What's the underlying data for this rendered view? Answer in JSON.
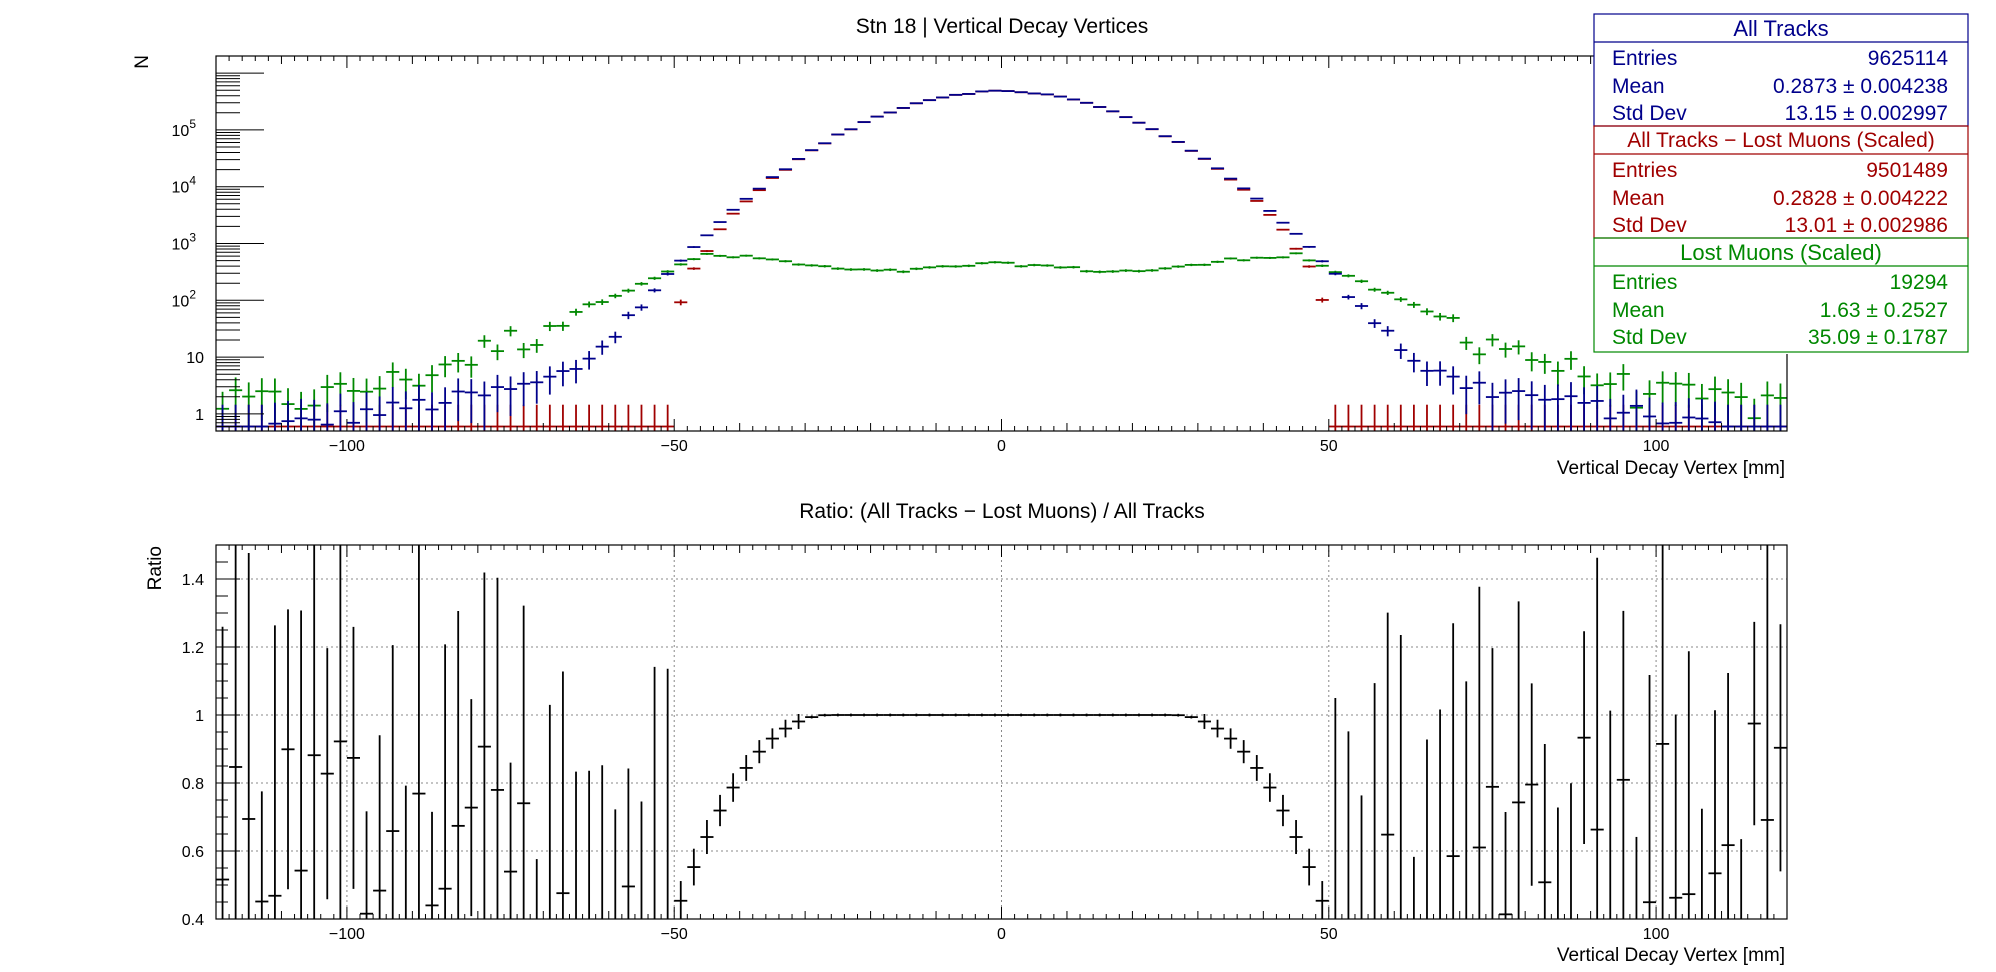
{
  "chart_data": [
    {
      "id": "top",
      "type": "histogram",
      "title": "Stn 18 | Vertical Decay Vertices",
      "xlabel": "Vertical Decay Vertex [mm]",
      "ylabel": "N",
      "xlim": [
        -120,
        120
      ],
      "ylim": [
        0.5,
        2000000
      ],
      "yscale": "log",
      "xticks": [
        -100,
        -50,
        0,
        50,
        100
      ],
      "xtick_labels": [
        "−100",
        "−50",
        "0",
        "50",
        "100"
      ],
      "yticks": [
        {
          "value": 1,
          "base": "1",
          "exp": ""
        },
        {
          "value": 10,
          "base": "10",
          "exp": ""
        },
        {
          "value": 100,
          "base": "10",
          "exp": "2"
        },
        {
          "value": 1000,
          "base": "10",
          "exp": "3"
        },
        {
          "value": 10000,
          "base": "10",
          "exp": "4"
        },
        {
          "value": 100000,
          "base": "10",
          "exp": "5"
        }
      ],
      "grid": false,
      "bin_width": 2,
      "bin_edges": [
        -120,
        120
      ],
      "series": [
        {
          "name": "All Tracks",
          "color": "#00008b",
          "model": "all_tracks"
        },
        {
          "name": "All Tracks  − Lost Muons (Scaled)",
          "color": "#a00000",
          "model": "all_minus_lost"
        },
        {
          "name": "Lost Muons (Scaled)",
          "color": "#008800",
          "model": "lost_muons"
        }
      ],
      "stats": [
        {
          "header": "All Tracks",
          "color": "#00008b",
          "rows": [
            {
              "label": "Entries",
              "value": "9625114"
            },
            {
              "label": "Mean",
              "value": "0.2873 ± 0.004238"
            },
            {
              "label": "Std Dev",
              "value": "13.15 ± 0.002997"
            }
          ]
        },
        {
          "header": "All Tracks  − Lost Muons (Scaled)",
          "color": "#a00000",
          "rows": [
            {
              "label": "Entries",
              "value": "9501489"
            },
            {
              "label": "Mean",
              "value": "0.2828 ± 0.004222"
            },
            {
              "label": "Std Dev",
              "value": "13.01 ± 0.002986"
            }
          ]
        },
        {
          "header": "Lost Muons (Scaled)",
          "color": "#008800",
          "rows": [
            {
              "label": "Entries",
              "value": "19294"
            },
            {
              "label": "Mean",
              "value": "1.63 ± 0.2527"
            },
            {
              "label": "Std Dev",
              "value": "35.09 ± 0.1787"
            }
          ]
        }
      ]
    },
    {
      "id": "bottom",
      "type": "histogram",
      "title": "Ratio: (All Tracks  − Lost Muons) / All Tracks",
      "xlabel": "Vertical Decay Vertex [mm]",
      "ylabel": "Ratio",
      "xlim": [
        -120,
        120
      ],
      "ylim": [
        0.4,
        1.5
      ],
      "xticks": [
        -100,
        -50,
        0,
        50,
        100
      ],
      "xtick_labels": [
        "−100",
        "−50",
        "0",
        "50",
        "100"
      ],
      "yticks": [
        0.4,
        0.6,
        0.8,
        1,
        1.2,
        1.4
      ],
      "ytick_labels": [
        "0.4",
        "0.6",
        "0.8",
        "1",
        "1.2",
        "1.4"
      ],
      "grid": true,
      "bin_width": 2,
      "series": [
        {
          "name": "Ratio",
          "color": "#000000",
          "model": "ratio"
        }
      ]
    }
  ]
}
